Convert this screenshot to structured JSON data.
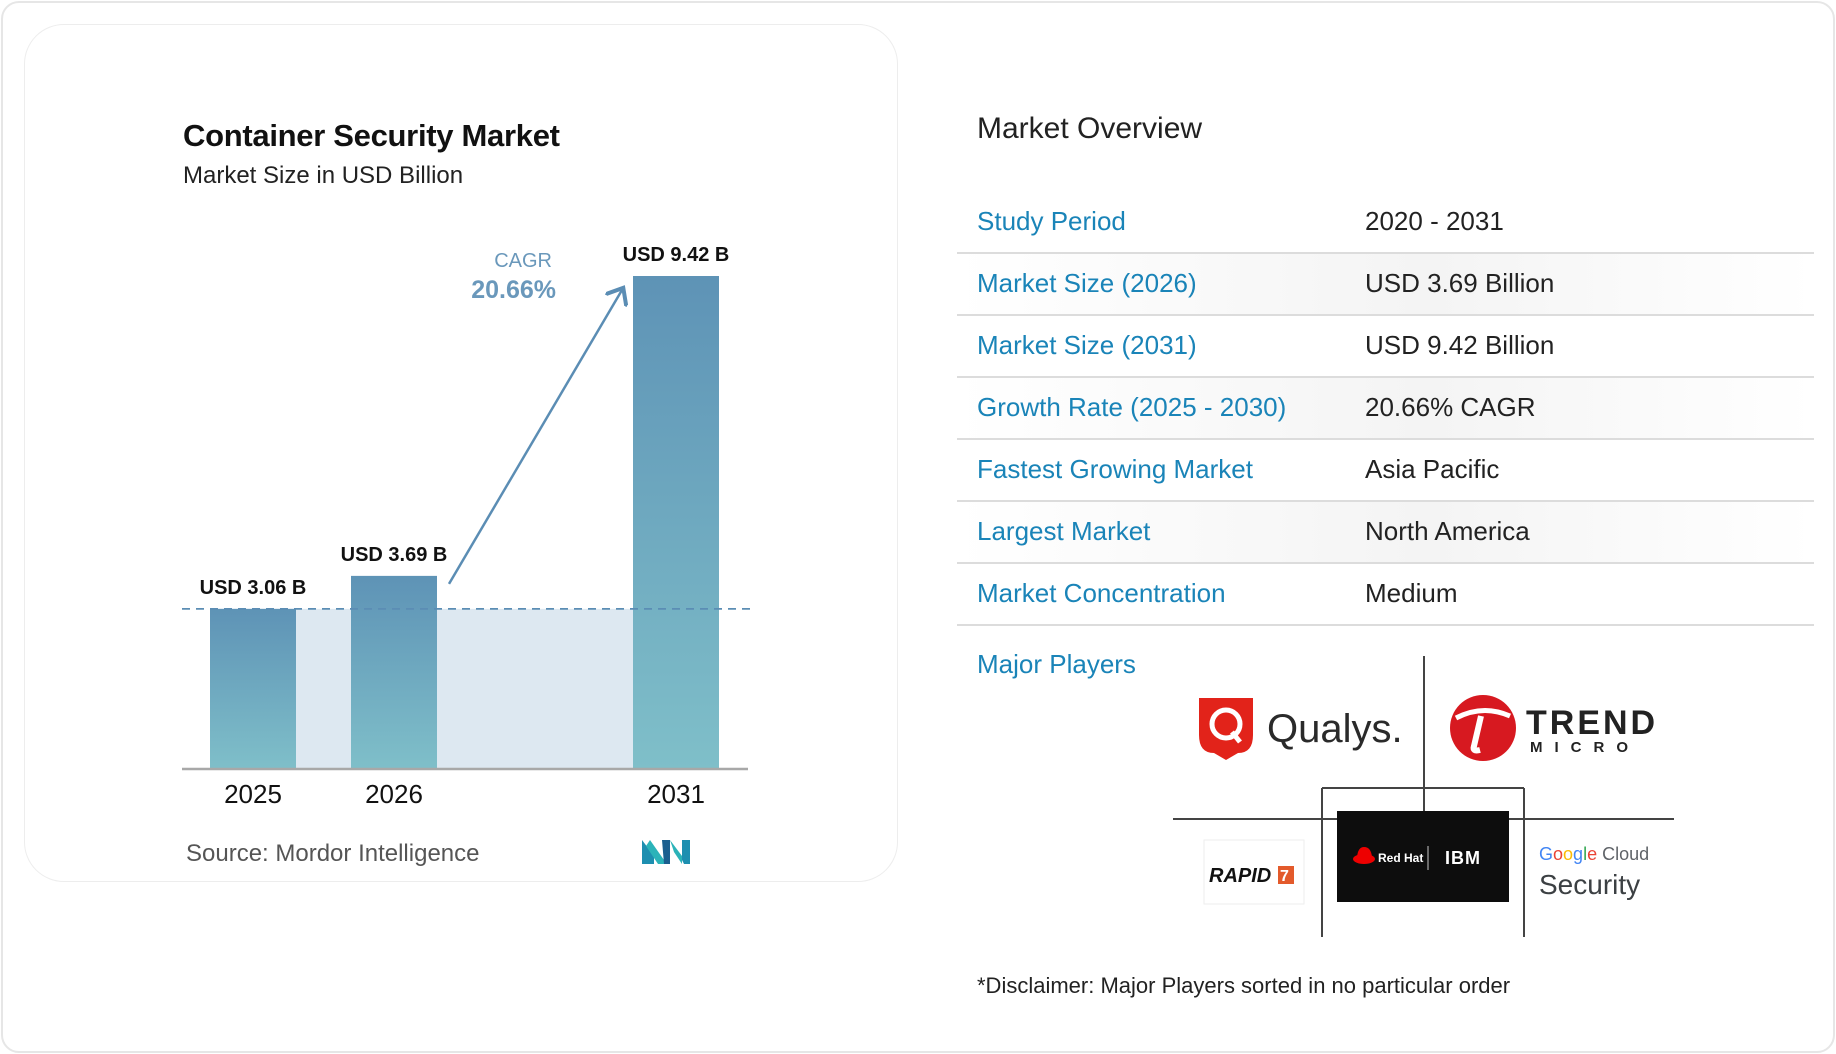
{
  "chart_data": {
    "type": "bar",
    "title": "Container Security Market",
    "subtitle": "Market Size in USD Billion",
    "categories": [
      "2025",
      "2026",
      "2031"
    ],
    "values": [
      3.06,
      3.69,
      9.42
    ],
    "value_labels": [
      "USD 3.06 B",
      "USD 3.69 B",
      "USD 9.42 B"
    ],
    "cagr_label": "CAGR",
    "cagr_value": "20.66%",
    "ylim": [
      0,
      9.42
    ],
    "grid": false,
    "colors": {
      "bar_top": "#5e93b6",
      "bar_bottom": "#7fbfc9",
      "arrow": "#5b8db4",
      "band": "#dde8f1"
    }
  },
  "source": "Source:  Mordor Intelligence",
  "logo_name": "mordor-intelligence-logo",
  "overview": {
    "title": "Market Overview",
    "rows": [
      {
        "label": "Study Period",
        "value": "2020 - 2031"
      },
      {
        "label": "Market Size (2026)",
        "value": "USD 3.69 Billion"
      },
      {
        "label": "Market Size (2031)",
        "value": "USD 9.42 Billion"
      },
      {
        "label": "Growth Rate (2025 - 2030)",
        "value": "20.66% CAGR"
      },
      {
        "label": "Fastest Growing Market",
        "value": "Asia Pacific"
      },
      {
        "label": "Largest Market",
        "value": "North America"
      },
      {
        "label": "Market Concentration",
        "value": "Medium"
      }
    ],
    "major_players_label": "Major Players",
    "players": [
      "Qualys.",
      "TREND MICRO",
      "RAPID7",
      "Red Hat | IBM",
      "Google Cloud Security"
    ],
    "disclaimer": "*Disclaimer: Major Players sorted in no particular order"
  },
  "accent_color": "#1a84b8"
}
